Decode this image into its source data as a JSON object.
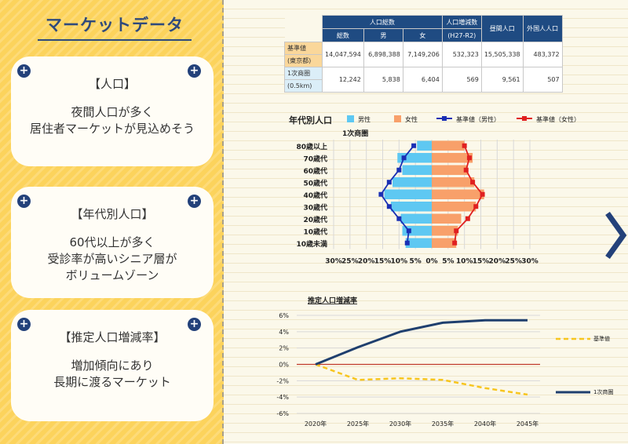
{
  "sidebar": {
    "title": "マーケットデータ",
    "cards": [
      {
        "title": "【人口】",
        "lines": [
          "夜間人口が多く",
          "居住者マーケットが見込めそう"
        ]
      },
      {
        "title": "【年代別人口】",
        "lines": [
          "60代以上が多く",
          "受診率が高いシニア層が",
          "ボリュームゾーン"
        ]
      },
      {
        "title": "【推定人口増減率】",
        "lines": [
          "増加傾向にあり",
          "長期に渡るマーケット"
        ]
      }
    ]
  },
  "table": {
    "headers": {
      "total": "人口総数",
      "total_sub": [
        "総数",
        "男",
        "女"
      ],
      "change": "人口増減数",
      "change_sub": "(H27-R2)",
      "daytime": "昼間人口",
      "foreign": "外国人人口"
    },
    "rows": [
      {
        "label": "基準値",
        "sublabel": "(東京都)",
        "values": [
          "14,047,594",
          "6,898,388",
          "7,149,206",
          "532,323",
          "15,505,338",
          "483,372"
        ]
      },
      {
        "label": "1次商圏",
        "sublabel": "(0.5km)",
        "values": [
          "12,242",
          "5,838",
          "6,404",
          "569",
          "9,561",
          "507"
        ]
      }
    ]
  },
  "colors": {
    "male": "#5ec8f2",
    "female": "#f8a06a",
    "male_line": "#1a2fb4",
    "female_line": "#e02020",
    "growth_area": "#1f3f6e",
    "growth_base": "#f7c51e",
    "zero_line": "#c0392b"
  },
  "chart_data": [
    {
      "type": "bar",
      "title": "年代別人口",
      "subtitle": "1次商圏",
      "orientation": "horizontal-pyramid",
      "categories": [
        "80歳以上",
        "70歳代",
        "60歳代",
        "50歳代",
        "40歳代",
        "30歳代",
        "20歳代",
        "10歳代",
        "10歳未満"
      ],
      "series": [
        {
          "name": "男性",
          "values": [
            4.5,
            10.5,
            9.0,
            12.0,
            14.5,
            12.5,
            9.5,
            9.0,
            8.0
          ]
        },
        {
          "name": "女性",
          "values": [
            10.0,
            12.5,
            11.0,
            13.0,
            16.0,
            13.5,
            9.0,
            8.0,
            7.5
          ]
        },
        {
          "name": "基準値（男性）",
          "values": [
            5.5,
            8.5,
            10.0,
            13.0,
            15.5,
            13.0,
            10.0,
            7.0,
            7.5
          ]
        },
        {
          "name": "基準値（女性）",
          "values": [
            10.0,
            11.5,
            10.5,
            12.5,
            15.5,
            13.5,
            11.0,
            7.5,
            7.0
          ]
        }
      ],
      "xticks": [
        "30%",
        "25%",
        "20%",
        "15%",
        "10%",
        "5%",
        "0%",
        "5%",
        "10%",
        "15%",
        "20%",
        "25%",
        "30%"
      ],
      "xlim": [
        -30,
        30
      ],
      "grid": true,
      "legend": "top"
    },
    {
      "type": "line",
      "title": "推定人口増減率",
      "x": [
        "2020年",
        "2025年",
        "2030年",
        "2035年",
        "2040年",
        "2045年"
      ],
      "series": [
        {
          "name": "基準値",
          "values": [
            0,
            -1.9,
            -1.7,
            -1.9,
            -2.9,
            -3.7
          ]
        },
        {
          "name": "1次商圏",
          "values": [
            0,
            2.1,
            4.0,
            5.1,
            5.4,
            5.4
          ]
        }
      ],
      "yticks": [
        "6%",
        "4%",
        "2%",
        "0%",
        "-2%",
        "-4%",
        "-6%"
      ],
      "ylim": [
        -6,
        6
      ],
      "grid": true,
      "legend": "right"
    }
  ]
}
